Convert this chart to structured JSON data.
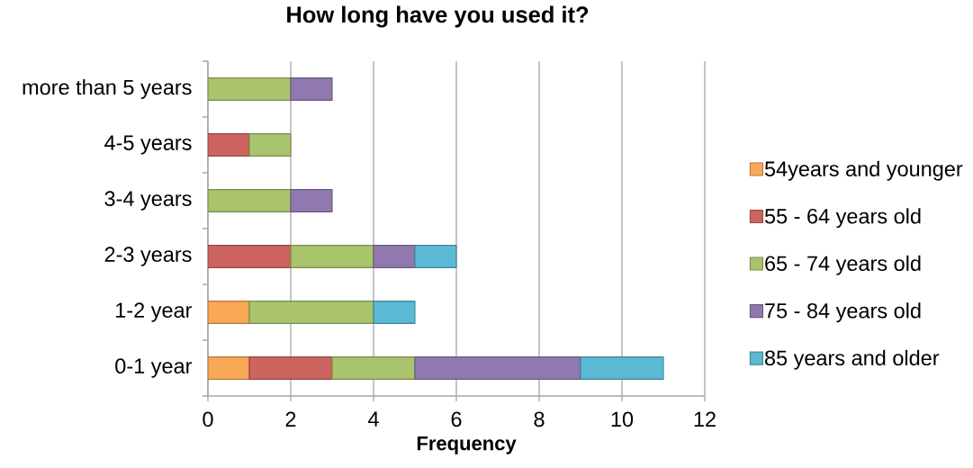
{
  "chart_data": {
    "type": "bar",
    "orientation": "horizontal",
    "stacked": true,
    "title": "How long have you used it?",
    "xlabel": "Frequency",
    "categories": [
      "more than 5 years",
      "4-5 years",
      "3-4 years",
      "2-3 years",
      "1-2 year",
      "0-1 year"
    ],
    "series": [
      {
        "name": "54years and younger",
        "color": "#f9a856",
        "values": [
          0,
          0,
          0,
          0,
          1,
          1
        ]
      },
      {
        "name": "55 - 64 years old",
        "color": "#cd645f",
        "values": [
          0,
          1,
          0,
          2,
          0,
          2
        ]
      },
      {
        "name": "65 - 74 years old",
        "color": "#a9c46c",
        "values": [
          2,
          1,
          2,
          2,
          3,
          2
        ]
      },
      {
        "name": "75 - 84 years old",
        "color": "#9179b0",
        "values": [
          1,
          0,
          1,
          1,
          0,
          4
        ]
      },
      {
        "name": "85 years and older",
        "color": "#5bb9d3",
        "values": [
          0,
          0,
          0,
          1,
          1,
          2
        ]
      }
    ],
    "xlim": [
      0,
      12
    ],
    "xticks": [
      0,
      2,
      4,
      6,
      8,
      10,
      12
    ],
    "grid": "x",
    "legend": "right"
  }
}
